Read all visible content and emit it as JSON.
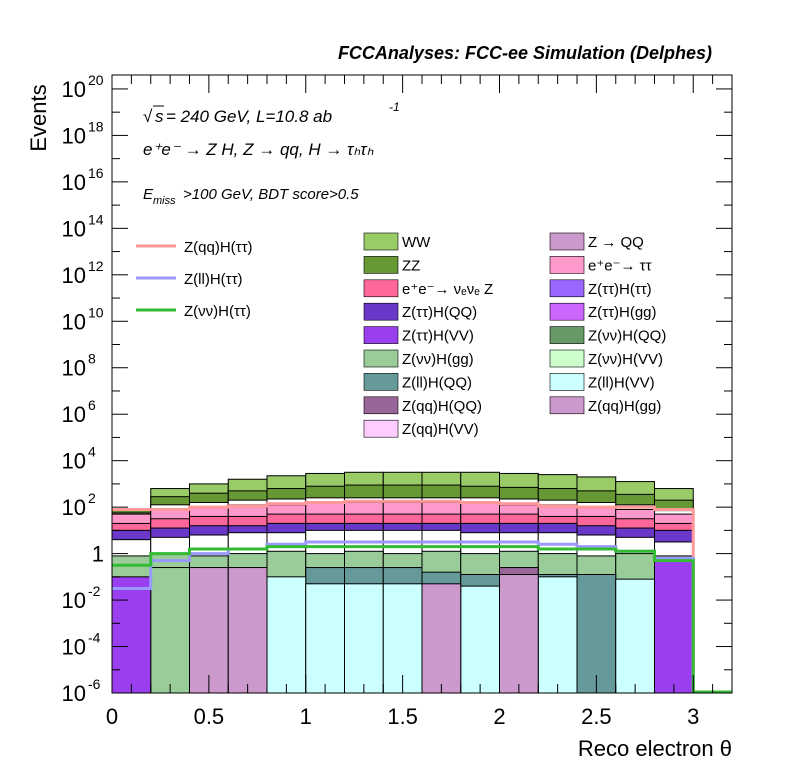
{
  "header": "FCCAnalyses: FCC-ee Simulation (Delphes)",
  "info": {
    "energy": "= 240 GeV, L=10.8 ab",
    "lumi_exp": "-1",
    "sqrt_s": "s",
    "process": "e⁺e⁻ → Z H, Z  → qq, H  → τₕτₕ",
    "cuts": "E",
    "cuts_sub": "miss",
    "cuts_rest": ">100 GeV, BDT score>0.5"
  },
  "chart_data": {
    "type": "stacked-histogram",
    "xlabel": "Reco electron θ",
    "ylabel": "Events",
    "xlim": [
      0,
      3.2
    ],
    "ylim_log10": [
      -6,
      20.6
    ],
    "log_y": true,
    "bins": [
      0,
      0.2,
      0.4,
      0.6,
      0.8,
      1.0,
      1.2,
      1.4,
      1.6,
      1.8,
      2.0,
      2.2,
      2.4,
      2.6,
      2.8,
      3.0
    ],
    "x_ticks": [
      "0",
      "0.5",
      "1",
      "1.5",
      "2",
      "2.5",
      "3"
    ],
    "x_tick_values": [
      0,
      0.5,
      1,
      1.5,
      2,
      2.5,
      3
    ],
    "y_ticks": [
      {
        "p": -6,
        "label": "10",
        "exp": "-6"
      },
      {
        "p": -4,
        "label": "10",
        "exp": "-4"
      },
      {
        "p": -2,
        "label": "10",
        "exp": "-2"
      },
      {
        "p": 0,
        "label": "1",
        "exp": ""
      },
      {
        "p": 2,
        "label": "10",
        "exp": "2"
      },
      {
        "p": 4,
        "label": "10",
        "exp": "4"
      },
      {
        "p": 6,
        "label": "10",
        "exp": "6"
      },
      {
        "p": 8,
        "label": "10",
        "exp": "8"
      },
      {
        "p": 10,
        "label": "10",
        "exp": "10"
      },
      {
        "p": 12,
        "label": "10",
        "exp": "12"
      },
      {
        "p": 14,
        "label": "10",
        "exp": "14"
      },
      {
        "p": 16,
        "label": "10",
        "exp": "16"
      },
      {
        "p": 18,
        "label": "10",
        "exp": "18"
      },
      {
        "p": 20,
        "label": "10",
        "exp": "20"
      }
    ],
    "stack_totals_log10": [
      1.85,
      2.8,
      3.0,
      3.2,
      3.35,
      3.45,
      3.5,
      3.5,
      3.5,
      3.5,
      3.45,
      3.4,
      3.3,
      3.1,
      2.8
    ],
    "stack_layers": [
      {
        "name": "Z(ττ)H(VV)",
        "color": "#9a3ff0",
        "log10": [
          -1.0,
          null,
          null,
          null,
          null,
          null,
          null,
          null,
          null,
          null,
          null,
          null,
          null,
          null,
          -0.3
        ]
      },
      {
        "name": "Z(νν)H(gg)",
        "color": "#99cc99",
        "log10": [
          null,
          -0.6,
          null,
          null,
          null,
          null,
          null,
          null,
          null,
          null,
          null,
          null,
          null,
          null,
          null
        ]
      },
      {
        "name": "Z(qq)H(gg)",
        "color": "#cc99cc",
        "log10": [
          null,
          null,
          -0.6,
          -0.6,
          null,
          null,
          null,
          null,
          -1.3,
          null,
          -0.9,
          null,
          null,
          null,
          null
        ]
      },
      {
        "name": "Z(ll)H(VV)",
        "color": "#ccffff",
        "log10": [
          null,
          null,
          null,
          null,
          -1.0,
          -1.3,
          -1.3,
          -1.3,
          -1.8,
          -1.4,
          -1.4,
          -1.0,
          -6,
          -1.1,
          null
        ]
      },
      {
        "name": "Z(ll)H(QQ)",
        "color": "#669999",
        "log10": [
          null,
          null,
          null,
          null,
          null,
          -0.6,
          -0.6,
          -0.6,
          -0.8,
          -0.9,
          -0.9,
          -0.9,
          -0.9,
          null,
          null
        ]
      },
      {
        "name": "Z(qq)H(QQ)",
        "color": "#996699",
        "log10": [
          null,
          null,
          null,
          null,
          null,
          null,
          null,
          null,
          -1.1,
          null,
          -0.6,
          null,
          null,
          null,
          null
        ]
      },
      {
        "name": "Z(νν)H(gg)",
        "color": "#99cc99",
        "log10": [
          -0.1,
          0.0,
          -0.1,
          0.0,
          0.1,
          0.0,
          0.1,
          0.0,
          0.1,
          0.0,
          0.1,
          0.0,
          -0.1,
          0.0,
          -0.1
        ]
      },
      {
        "name": "Z(ll)H(ττ)",
        "color": "#ffffff",
        "log10": [
          0.6,
          0.7,
          0.8,
          0.9,
          0.9,
          1.0,
          1.0,
          1.0,
          1.0,
          0.9,
          0.9,
          0.9,
          0.8,
          0.7,
          0.5
        ]
      },
      {
        "name": "Z(ττ)H(QQ)",
        "color": "#6a38c8",
        "log10": [
          1.0,
          1.1,
          1.2,
          1.2,
          1.3,
          1.3,
          1.3,
          1.3,
          1.3,
          1.3,
          1.3,
          1.3,
          1.2,
          1.1,
          1.0
        ]
      },
      {
        "name": "e⁺e⁻→ νₑνₑ Z",
        "color": "#ff6699",
        "log10": [
          1.3,
          1.5,
          1.6,
          1.6,
          1.7,
          1.7,
          1.7,
          1.7,
          1.7,
          1.7,
          1.7,
          1.6,
          1.6,
          1.5,
          1.3
        ]
      },
      {
        "name": "e⁺e⁻→ ττ",
        "color": "#ff99cc",
        "log10": [
          1.7,
          1.9,
          2.0,
          2.1,
          2.1,
          2.2,
          2.2,
          2.2,
          2.2,
          2.2,
          2.1,
          2.1,
          2.0,
          1.9,
          1.7
        ]
      },
      {
        "name": "Z(ττ)H(ττ)",
        "color": "#ffffff",
        "log10": [
          1.75,
          2.1,
          2.2,
          2.3,
          2.35,
          2.4,
          2.4,
          2.4,
          2.4,
          2.4,
          2.35,
          2.3,
          2.2,
          2.1,
          1.85
        ]
      },
      {
        "name": "ZZ",
        "color": "#669933",
        "log10": [
          1.85,
          2.45,
          2.6,
          2.7,
          2.8,
          2.9,
          2.95,
          2.95,
          2.95,
          2.9,
          2.85,
          2.8,
          2.7,
          2.55,
          2.3
        ]
      },
      {
        "name": "WW",
        "color": "#99cc66",
        "log10": [
          1.85,
          2.8,
          3.0,
          3.2,
          3.35,
          3.45,
          3.5,
          3.5,
          3.5,
          3.5,
          3.45,
          3.4,
          3.3,
          3.1,
          2.8
        ]
      }
    ],
    "lines": [
      {
        "name": "Z(qq)H(ττ)",
        "color": "#ff9999",
        "log10": [
          1.9,
          1.9,
          2.0,
          2.05,
          2.15,
          2.2,
          2.25,
          2.25,
          2.25,
          2.2,
          2.15,
          2.05,
          2.0,
          2.0,
          1.9
        ]
      },
      {
        "name": "Z(ll)H(ττ)",
        "color": "#9999ff",
        "log10": [
          -1.5,
          -0.3,
          0.0,
          0.2,
          0.4,
          0.5,
          0.5,
          0.5,
          0.5,
          0.5,
          0.5,
          0.4,
          0.3,
          0.1,
          -0.2
        ]
      },
      {
        "name": "Z(νν)H(ττ)",
        "color": "#33bb33",
        "log10": [
          -0.5,
          0.0,
          0.2,
          0.2,
          0.3,
          0.3,
          0.3,
          0.3,
          0.3,
          0.3,
          0.3,
          0.2,
          0.2,
          0.1,
          -0.3
        ]
      }
    ],
    "legend_lines": [
      {
        "label": "Z(qq)H(ττ)",
        "color": "#ff9999"
      },
      {
        "label": "Z(ll)H(ττ)",
        "color": "#9999ff"
      },
      {
        "label": "Z(νν)H(ττ)",
        "color": "#33bb33"
      }
    ],
    "legend_col1": [
      {
        "label": "WW",
        "color": "#99cc66"
      },
      {
        "label": "ZZ",
        "color": "#669933"
      },
      {
        "label": "e⁺e⁻→ νₑνₑ Z",
        "color": "#ff6699"
      },
      {
        "label": "Z(ττ)H(QQ)",
        "color": "#6a38c8"
      },
      {
        "label": "Z(ττ)H(VV)",
        "color": "#9a3ff0"
      },
      {
        "label": "Z(νν)H(gg)",
        "color": "#99cc99"
      },
      {
        "label": "Z(ll)H(QQ)",
        "color": "#669999"
      },
      {
        "label": "Z(qq)H(QQ)",
        "color": "#996699"
      },
      {
        "label": "Z(qq)H(VV)",
        "color": "#ffccff"
      }
    ],
    "legend_col2": [
      {
        "label": "Z → QQ",
        "color": "#cc99cc"
      },
      {
        "label": "e⁺e⁻→ ττ",
        "color": "#ff99cc"
      },
      {
        "label": "Z(ττ)H(ττ)",
        "color": "#9966ff"
      },
      {
        "label": "Z(ττ)H(gg)",
        "color": "#cc66ff"
      },
      {
        "label": "Z(νν)H(QQ)",
        "color": "#669966"
      },
      {
        "label": "Z(νν)H(VV)",
        "color": "#ccffcc"
      },
      {
        "label": "Z(ll)H(VV)",
        "color": "#ccffff"
      },
      {
        "label": "Z(qq)H(gg)",
        "color": "#cc99cc"
      }
    ]
  }
}
